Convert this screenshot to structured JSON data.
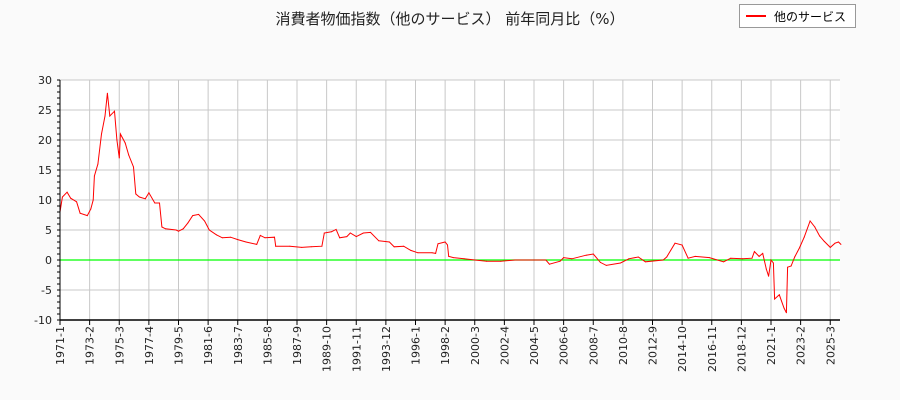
{
  "chart_data": {
    "type": "line",
    "title": "消費者物価指数（他のサービス） 前年同月比（%）",
    "xlabel": "",
    "ylabel": "",
    "ylim": [
      -10,
      30
    ],
    "yticks": [
      30,
      25,
      20,
      15,
      10,
      5,
      0,
      -5,
      -10
    ],
    "xlim": [
      "1971-1",
      "2025-12"
    ],
    "xtick_labels": [
      "1971-1",
      "1973-2",
      "1975-3",
      "1977-4",
      "1979-5",
      "1981-6",
      "1983-7",
      "1985-8",
      "1987-9",
      "1989-10",
      "1991-11",
      "1993-12",
      "1996-1",
      "1998-2",
      "2000-3",
      "2002-4",
      "2004-5",
      "2006-6",
      "2008-7",
      "2010-8",
      "2012-9",
      "2014-10",
      "2016-11",
      "2018-12",
      "2021-1",
      "2023-2",
      "2025-3"
    ],
    "grid": true,
    "legend_position": "top-right",
    "reference_line": {
      "y": 0,
      "color": "#00ff00"
    },
    "series": [
      {
        "name": "他のサービス",
        "color": "#ff0000",
        "x": [
          "1971-1",
          "1971-3",
          "1971-7",
          "1971-10",
          "1972-3",
          "1972-6",
          "1972-12",
          "1973-3",
          "1973-5",
          "1973-6",
          "1973-9",
          "1973-12",
          "1974-3",
          "1974-5",
          "1974-7",
          "1974-11",
          "1975-1",
          "1975-3",
          "1975-4",
          "1975-8",
          "1975-11",
          "1976-3",
          "1976-5",
          "1976-8",
          "1977-1",
          "1977-4",
          "1977-9",
          "1978-1",
          "1978-3",
          "1978-6",
          "1979-3",
          "1979-5",
          "1979-9",
          "1980-1",
          "1980-5",
          "1980-10",
          "1981-3",
          "1981-7",
          "1982-1",
          "1982-6",
          "1983-1",
          "1983-7",
          "1984-2",
          "1984-11",
          "1985-2",
          "1985-6",
          "1986-2",
          "1986-3",
          "1987-3",
          "1988-1",
          "1988-9",
          "1989-6",
          "1989-8",
          "1990-2",
          "1990-6",
          "1990-9",
          "1991-3",
          "1991-6",
          "1991-11",
          "1992-5",
          "1992-11",
          "1993-6",
          "1994-3",
          "1994-7",
          "1995-3",
          "1995-9",
          "1996-3",
          "1997-3",
          "1997-6",
          "1997-8",
          "1998-2",
          "1998-4",
          "1998-5",
          "1998-9",
          "1999-6",
          "2000-3",
          "2001-1",
          "2002-1",
          "2003-1",
          "2004-1",
          "2005-3",
          "2005-6",
          "2006-3",
          "2006-6",
          "2007-1",
          "2008-1",
          "2008-7",
          "2009-1",
          "2009-6",
          "2010-6",
          "2011-1",
          "2011-9",
          "2012-3",
          "2013-6",
          "2013-9",
          "2014-4",
          "2014-10",
          "2015-3",
          "2015-9",
          "2016-9",
          "2017-9",
          "2018-3",
          "2019-1",
          "2019-9",
          "2019-11",
          "2020-3",
          "2020-6",
          "2020-9",
          "2020-11",
          "2021-1",
          "2021-3",
          "2021-4",
          "2021-8",
          "2021-12",
          "2022-2",
          "2022-3",
          "2022-6",
          "2022-9",
          "2023-1",
          "2023-5",
          "2023-10",
          "2024-2",
          "2024-6",
          "2024-10",
          "2025-3",
          "2025-7",
          "2025-10",
          "2025-12"
        ],
        "y": [
          8,
          10.5,
          11.3,
          10.3,
          9.7,
          7.8,
          7.4,
          8.5,
          10,
          14,
          16,
          21,
          24,
          27.8,
          24,
          24.8,
          20,
          17,
          21,
          19.5,
          17.5,
          15.5,
          11,
          10.5,
          10.2,
          11.2,
          9.5,
          9.5,
          5.5,
          5.2,
          5.0,
          4.8,
          5.2,
          6.2,
          7.4,
          7.6,
          6.5,
          5,
          4.2,
          3.7,
          3.8,
          3.4,
          3.0,
          2.6,
          4.1,
          3.7,
          3.8,
          2.3,
          2.3,
          2.1,
          2.2,
          2.3,
          4.5,
          4.7,
          5.1,
          3.7,
          3.9,
          4.5,
          3.9,
          4.5,
          4.6,
          3.2,
          3.0,
          2.2,
          2.3,
          1.6,
          1.2,
          1.2,
          1.1,
          2.7,
          3.0,
          2.5,
          0.6,
          0.4,
          0.2,
          0.0,
          -0.2,
          -0.2,
          0.0,
          0.0,
          0.0,
          -0.7,
          -0.2,
          0.4,
          0.2,
          0.8,
          1.0,
          -0.4,
          -0.9,
          -0.5,
          0.2,
          0.5,
          -0.3,
          0.0,
          0.5,
          2.8,
          2.5,
          0.3,
          0.6,
          0.4,
          -0.3,
          0.3,
          0.2,
          0.3,
          1.4,
          0.6,
          1.1,
          -1.5,
          -2.7,
          0,
          -0.5,
          -6.5,
          -5.8,
          -8,
          -8.8,
          -1.2,
          -1.0,
          0.5,
          2,
          3.8,
          6.5,
          5.5,
          4,
          3.1,
          2.1,
          2.8,
          3.0,
          2.6
        ]
      }
    ]
  }
}
